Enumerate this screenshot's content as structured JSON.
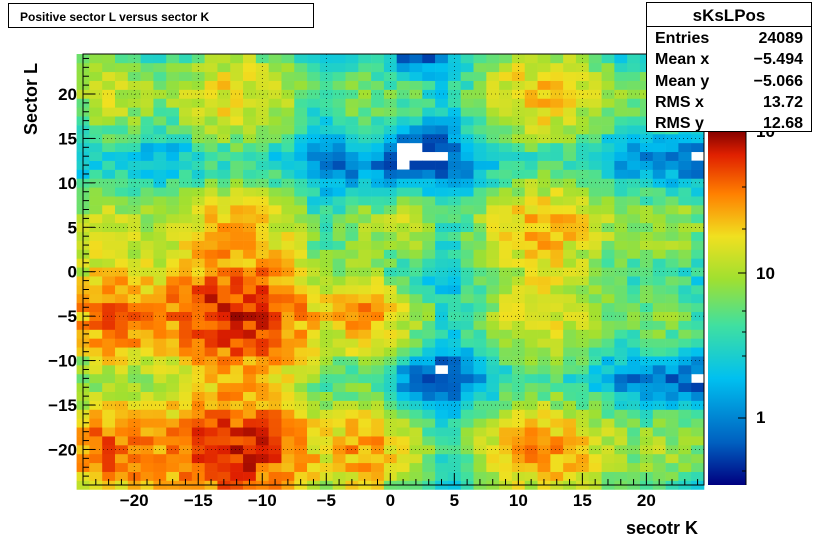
{
  "title": "Positive sector L versus sector K",
  "stats": {
    "name": "sKsLPos",
    "rows": [
      {
        "key": "Entries",
        "value": "24089"
      },
      {
        "key": "Mean x",
        "value": "−5.494"
      },
      {
        "key": "Mean y",
        "value": "−5.066"
      },
      {
        "key": "RMS x",
        "value": "13.72"
      },
      {
        "key": "RMS y",
        "value": "12.68"
      }
    ]
  },
  "chart_data": {
    "type": "heatmap",
    "title": "Positive sector L versus sector K",
    "xlabel": "secotr K",
    "ylabel": "Sector L",
    "xlim": [
      -24,
      24.5
    ],
    "ylim": [
      -24,
      24.5
    ],
    "x_ticks": [
      "−20",
      "−15",
      "−10",
      "−5",
      "0",
      "5",
      "10",
      "15",
      "20"
    ],
    "y_ticks": [
      "−20",
      "−15",
      "−10",
      "−5",
      "0",
      "5",
      "10",
      "15",
      "20"
    ],
    "z_scale": "log",
    "z_ticks": [
      "1",
      "10",
      "10"
    ],
    "grid": true,
    "blobs": [
      {
        "x": -22,
        "y": 20,
        "rx": 2.5,
        "ry": 3.5,
        "peak": 25
      },
      {
        "x": -12,
        "y": 20,
        "rx": 3.5,
        "ry": 3.5,
        "peak": 40
      },
      {
        "x": -2,
        "y": 20,
        "rx": 1.5,
        "ry": 3.5,
        "peak": 15
      },
      {
        "x": 1.5,
        "y": 19.5,
        "rx": 1.5,
        "ry": 2,
        "peak": 10
      },
      {
        "x": 12,
        "y": 20,
        "rx": 3.5,
        "ry": 3.5,
        "peak": 45
      },
      {
        "x": 22,
        "y": 20,
        "rx": 2.5,
        "ry": 3,
        "peak": 15
      },
      {
        "x": -22,
        "y": 5,
        "rx": 2.5,
        "ry": 3.5,
        "peak": 25
      },
      {
        "x": -12,
        "y": 5,
        "rx": 3.5,
        "ry": 3.5,
        "peak": 45
      },
      {
        "x": -2,
        "y": 5,
        "rx": 1.5,
        "ry": 3,
        "peak": 15
      },
      {
        "x": 1.5,
        "y": 5,
        "rx": 1.5,
        "ry": 2.5,
        "peak": 25
      },
      {
        "x": 12,
        "y": 5,
        "rx": 3.5,
        "ry": 3.5,
        "peak": 50
      },
      {
        "x": 22,
        "y": 5,
        "rx": 2.5,
        "ry": 3,
        "peak": 20
      },
      {
        "x": -22,
        "y": -5,
        "rx": 2.5,
        "ry": 3.5,
        "peak": 80
      },
      {
        "x": -12,
        "y": -5,
        "rx": 4,
        "ry": 4,
        "peak": 140
      },
      {
        "x": -2,
        "y": -5,
        "rx": 1.5,
        "ry": 3,
        "peak": 60
      },
      {
        "x": 1.5,
        "y": -5,
        "rx": 1.5,
        "ry": 2.5,
        "peak": 20
      },
      {
        "x": 12,
        "y": -5,
        "rx": 3.5,
        "ry": 3.5,
        "peak": 35
      },
      {
        "x": 22,
        "y": -5,
        "rx": 2.5,
        "ry": 3,
        "peak": 15
      },
      {
        "x": -22,
        "y": -20,
        "rx": 2.5,
        "ry": 3.5,
        "peak": 90
      },
      {
        "x": -12,
        "y": -20,
        "rx": 4,
        "ry": 4,
        "peak": 140
      },
      {
        "x": -2,
        "y": -20,
        "rx": 1.5,
        "ry": 3.5,
        "peak": 60
      },
      {
        "x": 1.5,
        "y": -20,
        "rx": 1.5,
        "ry": 3,
        "peak": 20
      },
      {
        "x": 12,
        "y": -20,
        "rx": 3.5,
        "ry": 3.5,
        "peak": 60
      },
      {
        "x": 22,
        "y": -20,
        "rx": 2.5,
        "ry": 3,
        "peak": 20
      }
    ]
  }
}
